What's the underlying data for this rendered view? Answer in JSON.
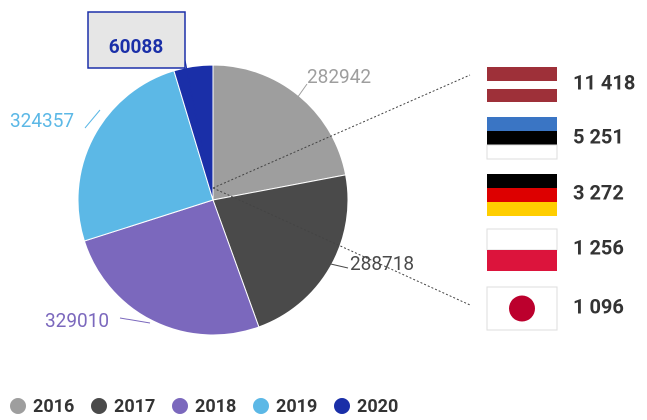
{
  "chart_data": {
    "type": "pie",
    "categories": [
      "2016",
      "2017",
      "2018",
      "2019",
      "2020"
    ],
    "values": [
      282942,
      288718,
      329010,
      324357,
      60088
    ],
    "colors": [
      "#9e9e9e",
      "#4a4a4a",
      "#7b68bd",
      "#5cb8e6",
      "#1a2fa8"
    ],
    "legend": "bottom-left",
    "breakdown": [
      "11 418",
      "5 251",
      "3 272",
      "1 256",
      "1 096"
    ]
  }
}
